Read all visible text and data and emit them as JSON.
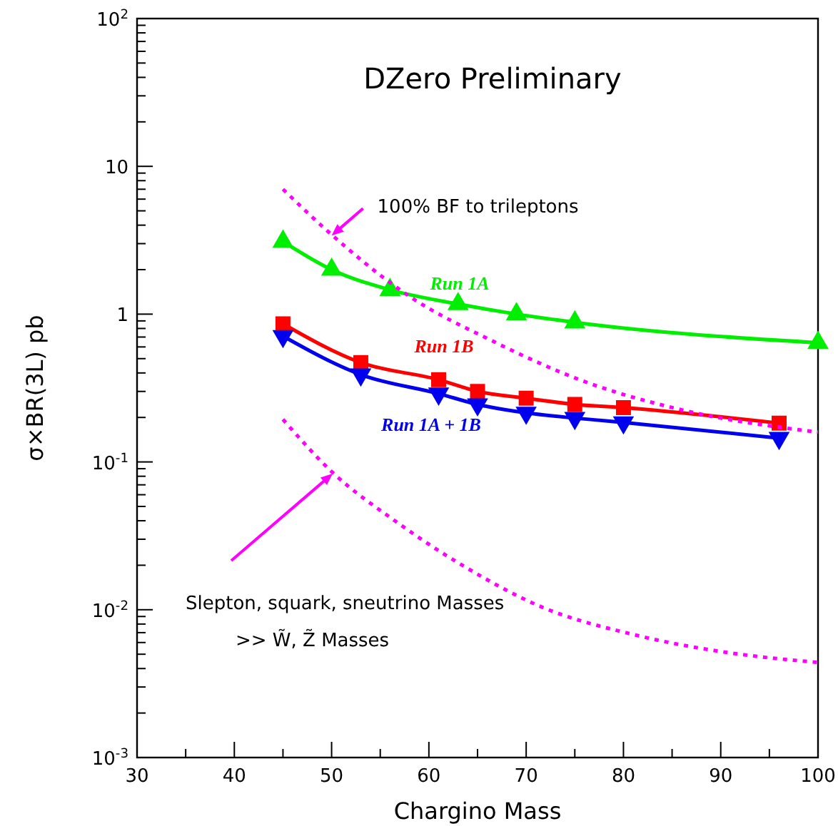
{
  "chart_data": {
    "type": "line",
    "title": "DZero Preliminary",
    "xlabel": "Chargino Mass",
    "ylabel": "σ×BR(3L) pb",
    "log": "y",
    "grid": false,
    "legend": false,
    "xlim": [
      30,
      100
    ],
    "ylim": [
      0.001,
      100
    ],
    "xticks": [
      30,
      {
        "value": 35,
        "label": null
      },
      40,
      {
        "value": 45,
        "label": null
      },
      50,
      {
        "value": 55,
        "label": null
      },
      60,
      {
        "value": 65,
        "label": null
      },
      70,
      {
        "value": 75,
        "label": null
      },
      80,
      {
        "value": 85,
        "label": null
      },
      90,
      {
        "value": 95,
        "label": null
      },
      100
    ],
    "yticks": [
      {
        "value": 0.001,
        "label": "10$^{-3}$"
      },
      {
        "value": 0.002,
        "label": null
      },
      {
        "value": 0.003,
        "label": null
      },
      {
        "value": 0.004,
        "label": null
      },
      {
        "value": 0.005,
        "label": null
      },
      {
        "value": 0.006,
        "label": null
      },
      {
        "value": 0.007,
        "label": null
      },
      {
        "value": 0.008,
        "label": null
      },
      {
        "value": 0.009,
        "label": null
      },
      {
        "value": 0.01,
        "label": "10$^{-2}$"
      },
      {
        "value": 0.02,
        "label": null
      },
      {
        "value": 0.03,
        "label": null
      },
      {
        "value": 0.04,
        "label": null
      },
      {
        "value": 0.05,
        "label": null
      },
      {
        "value": 0.06,
        "label": null
      },
      {
        "value": 0.07,
        "label": null
      },
      {
        "value": 0.08,
        "label": null
      },
      {
        "value": 0.09,
        "label": null
      },
      {
        "value": 0.1,
        "label": "10$^{-1}$"
      },
      {
        "value": 0.2,
        "label": null
      },
      {
        "value": 0.3,
        "label": null
      },
      {
        "value": 0.4,
        "label": null
      },
      {
        "value": 0.5,
        "label": null
      },
      {
        "value": 0.6,
        "label": null
      },
      {
        "value": 0.7,
        "label": null
      },
      {
        "value": 0.8,
        "label": null
      },
      {
        "value": 0.9,
        "label": null
      },
      1,
      {
        "value": 2,
        "label": null
      },
      {
        "value": 3,
        "label": null
      },
      {
        "value": 4,
        "label": null
      },
      {
        "value": 5,
        "label": null
      },
      {
        "value": 6,
        "label": null
      },
      {
        "value": 7,
        "label": null
      },
      {
        "value": 8,
        "label": null
      },
      {
        "value": 9,
        "label": null
      },
      10,
      {
        "value": 20,
        "label": null
      },
      {
        "value": 30,
        "label": null
      },
      {
        "value": 40,
        "label": null
      },
      {
        "value": 50,
        "label": null
      },
      {
        "value": 60,
        "label": null
      },
      {
        "value": 70,
        "label": null
      },
      {
        "value": 80,
        "label": null
      },
      {
        "value": 90,
        "label": null
      },
      {
        "value": 100,
        "label": "10$^{2}$"
      }
    ],
    "series": [
      {
        "name": "Run 1A",
        "color": "#00ee00",
        "marker": "triangle",
        "line_style": "solid",
        "x": [
          45,
          50,
          56,
          63,
          69,
          75,
          100
        ],
        "values": [
          3.1,
          2.0,
          1.46,
          1.17,
          1.0,
          0.88,
          0.64
        ]
      },
      {
        "name": "Run 1B",
        "color": "#ff0000",
        "marker": "square",
        "line_style": "solid",
        "x": [
          45,
          53,
          61,
          65,
          70,
          75,
          80,
          96
        ],
        "values": [
          0.86,
          0.47,
          0.36,
          0.3,
          0.27,
          0.245,
          0.233,
          0.183
        ]
      },
      {
        "name": "Run 1A + 1B",
        "color": "#0000ee",
        "marker": "triangle-down",
        "line_style": "solid",
        "x": [
          45,
          53,
          61,
          65,
          70,
          75,
          80,
          96
        ],
        "values": [
          0.71,
          0.39,
          0.29,
          0.245,
          0.215,
          0.198,
          0.185,
          0.145
        ]
      },
      {
        "color": "#ff00ff",
        "marker": "none",
        "line_style": "dotted",
        "x": [
          45,
          50,
          58,
          66.5,
          76,
          86,
          100
        ],
        "values": [
          7.0,
          3.45,
          1.32,
          0.66,
          0.35,
          0.225,
          0.159
        ]
      },
      {
        "color": "#ff00ff",
        "marker": "none",
        "line_style": "dotted",
        "x": [
          45,
          50,
          56.5,
          64,
          71.5,
          81,
          91,
          100
        ],
        "values": [
          0.194,
          0.086,
          0.04,
          0.019,
          0.0105,
          0.0068,
          0.0051,
          0.0044
        ]
      }
    ],
    "annotations": [
      {
        "text": "100% BF to trileptons",
        "x": 50,
        "y": 3.4
      },
      "Slepton, squark, sneutrino Masses\n>> W̃, Z̃ Masses"
    ]
  }
}
